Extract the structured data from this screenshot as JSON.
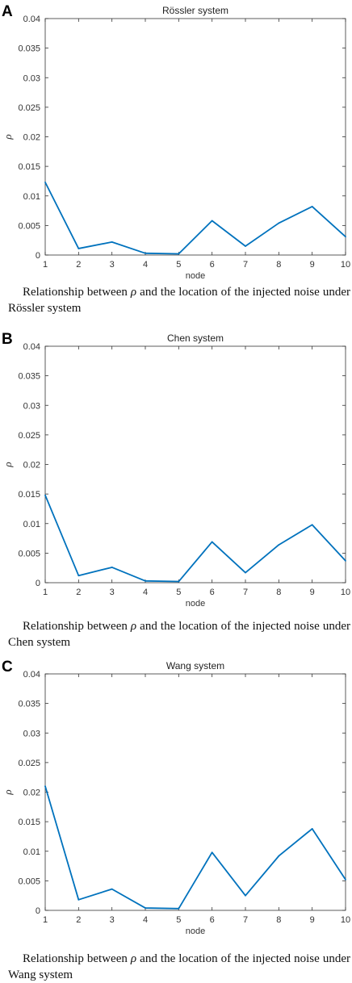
{
  "chart_data": [
    {
      "panel_letter": "A",
      "type": "line",
      "title": "Rössler system",
      "xlabel": "node",
      "ylabel": "ρ",
      "x": [
        1,
        2,
        3,
        4,
        5,
        6,
        7,
        8,
        9,
        10
      ],
      "x_ticks": [
        "1",
        "2",
        "3",
        "4",
        "5",
        "6",
        "7",
        "8",
        "9",
        "10"
      ],
      "y_ticks": [
        "0",
        "0.005",
        "0.01",
        "0.015",
        "0.02",
        "0.025",
        "0.03",
        "0.035",
        "0.04"
      ],
      "xlim": [
        1,
        10
      ],
      "ylim": [
        0,
        0.04
      ],
      "series": [
        {
          "values": [
            0.0123,
            0.0011,
            0.0022,
            0.0003,
            0.0002,
            0.0058,
            0.0015,
            0.0054,
            0.0082,
            0.0031
          ],
          "color": "#0072BD"
        }
      ],
      "caption_before": "Relationship between ",
      "caption_symbol": "ρ",
      "caption_after": " and the location of the injected noise under Rössler system"
    },
    {
      "panel_letter": "B",
      "type": "line",
      "title": "Chen system",
      "xlabel": "node",
      "ylabel": "ρ",
      "x": [
        1,
        2,
        3,
        4,
        5,
        6,
        7,
        8,
        9,
        10
      ],
      "x_ticks": [
        "1",
        "2",
        "3",
        "4",
        "5",
        "6",
        "7",
        "8",
        "9",
        "10"
      ],
      "y_ticks": [
        "0",
        "0.005",
        "0.01",
        "0.015",
        "0.02",
        "0.025",
        "0.03",
        "0.035",
        "0.04"
      ],
      "xlim": [
        1,
        10
      ],
      "ylim": [
        0,
        0.04
      ],
      "series": [
        {
          "values": [
            0.0148,
            0.0012,
            0.0026,
            0.0003,
            0.0002,
            0.0069,
            0.0017,
            0.0064,
            0.0098,
            0.0037
          ],
          "color": "#0072BD"
        }
      ],
      "caption_before": "Relationship between ",
      "caption_symbol": "ρ",
      "caption_after": " and the location of the injected noise under Chen system"
    },
    {
      "panel_letter": "C",
      "type": "line",
      "title": "Wang system",
      "xlabel": "node",
      "ylabel": "ρ",
      "x": [
        1,
        2,
        3,
        4,
        5,
        6,
        7,
        8,
        9,
        10
      ],
      "x_ticks": [
        "1",
        "2",
        "3",
        "4",
        "5",
        "6",
        "7",
        "8",
        "9",
        "10"
      ],
      "y_ticks": [
        "0",
        "0.005",
        "0.01",
        "0.015",
        "0.02",
        "0.025",
        "0.03",
        "0.035",
        "0.04"
      ],
      "xlim": [
        1,
        10
      ],
      "ylim": [
        0,
        0.04
      ],
      "series": [
        {
          "values": [
            0.021,
            0.0018,
            0.0036,
            0.0004,
            0.0003,
            0.0098,
            0.0025,
            0.0092,
            0.0138,
            0.0052
          ],
          "color": "#0072BD"
        }
      ],
      "caption_before": "Relationship between ",
      "caption_symbol": "ρ",
      "caption_after": " and the location of the injected noise under Wang system"
    }
  ]
}
